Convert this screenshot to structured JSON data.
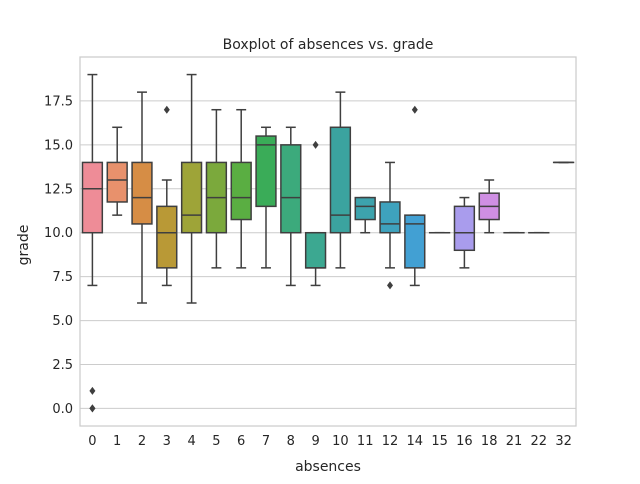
{
  "chart_data": {
    "type": "boxplot",
    "title": "Boxplot of absences vs. grade",
    "xlabel": "absences",
    "ylabel": "grade",
    "ylim": [
      -1,
      20
    ],
    "yticks": [
      0.0,
      2.5,
      5.0,
      7.5,
      10.0,
      12.5,
      15.0,
      17.5
    ],
    "ytick_labels": [
      "0.0",
      "2.5",
      "5.0",
      "7.5",
      "10.0",
      "12.5",
      "15.0",
      "17.5"
    ],
    "grid": "horizontal",
    "categories": [
      "0",
      "1",
      "2",
      "3",
      "4",
      "5",
      "6",
      "7",
      "8",
      "9",
      "10",
      "11",
      "12",
      "14",
      "15",
      "16",
      "18",
      "21",
      "22",
      "32"
    ],
    "boxes": [
      {
        "category": "0",
        "whislo": 7,
        "q1": 10,
        "med": 12.5,
        "q3": 14,
        "whishi": 19,
        "fliers": [
          1,
          0,
          0
        ],
        "color": "#ee8c97"
      },
      {
        "category": "1",
        "whislo": 11,
        "q1": 11.75,
        "med": 13,
        "q3": 14,
        "whishi": 16,
        "fliers": [],
        "color": "#e8916c"
      },
      {
        "category": "2",
        "whislo": 6,
        "q1": 10.5,
        "med": 12,
        "q3": 14,
        "whishi": 18,
        "fliers": [],
        "color": "#d68d45"
      },
      {
        "category": "3",
        "whislo": 7,
        "q1": 8,
        "med": 10,
        "q3": 11.5,
        "whishi": 13,
        "fliers": [
          17
        ],
        "color": "#b99936"
      },
      {
        "category": "4",
        "whislo": 6,
        "q1": 10,
        "med": 11,
        "q3": 14,
        "whishi": 19,
        "fliers": [],
        "color": "#9ea438"
      },
      {
        "category": "5",
        "whislo": 8,
        "q1": 10,
        "med": 12,
        "q3": 14,
        "whishi": 17,
        "fliers": [],
        "color": "#7ba93c"
      },
      {
        "category": "6",
        "whislo": 8,
        "q1": 10.75,
        "med": 12,
        "q3": 14,
        "whishi": 17,
        "fliers": [],
        "color": "#5aae42"
      },
      {
        "category": "7",
        "whislo": 8,
        "q1": 11.5,
        "med": 15,
        "q3": 15.5,
        "whishi": 16,
        "fliers": [],
        "color": "#3aac58"
      },
      {
        "category": "8",
        "whislo": 7,
        "q1": 10,
        "med": 12,
        "q3": 15,
        "whishi": 16,
        "fliers": [],
        "color": "#3caa7c"
      },
      {
        "category": "9",
        "whislo": 7,
        "q1": 8,
        "med": 8,
        "q3": 10,
        "whishi": 10,
        "fliers": [
          15
        ],
        "color": "#3ca891"
      },
      {
        "category": "10",
        "whislo": 8,
        "q1": 10,
        "med": 11,
        "q3": 16,
        "whishi": 18,
        "fliers": [],
        "color": "#3ba39f"
      },
      {
        "category": "11",
        "whislo": 10,
        "q1": 10.75,
        "med": 11.5,
        "q3": 12,
        "whishi": 12,
        "fliers": [],
        "color": "#3da3ad"
      },
      {
        "category": "12",
        "whislo": 8,
        "q1": 10,
        "med": 10.5,
        "q3": 11.75,
        "whishi": 14,
        "fliers": [
          7
        ],
        "color": "#3ea2bd"
      },
      {
        "category": "14",
        "whislo": 7,
        "q1": 8,
        "med": 10.5,
        "q3": 11,
        "whishi": 11,
        "fliers": [
          17
        ],
        "color": "#42a0d3"
      },
      {
        "category": "15",
        "whislo": 10,
        "q1": 10,
        "med": 10,
        "q3": 10,
        "whishi": 10,
        "fliers": [],
        "color": "#6f9de6"
      },
      {
        "category": "16",
        "whislo": 8,
        "q1": 9,
        "med": 10,
        "q3": 11.5,
        "whishi": 12,
        "fliers": [],
        "color": "#a99ced"
      },
      {
        "category": "18",
        "whislo": 10,
        "q1": 10.75,
        "med": 11.5,
        "q3": 12.25,
        "whishi": 13,
        "fliers": [],
        "color": "#cf8fe3"
      },
      {
        "category": "21",
        "whislo": 10,
        "q1": 10,
        "med": 10,
        "q3": 10,
        "whishi": 10,
        "fliers": [],
        "color": "#e486d6"
      },
      {
        "category": "22",
        "whislo": 10,
        "q1": 10,
        "med": 10,
        "q3": 10,
        "whishi": 10,
        "fliers": [],
        "color": "#ec88c0"
      },
      {
        "category": "32",
        "whislo": 14,
        "q1": 14,
        "med": 14,
        "q3": 14,
        "whishi": 14,
        "fliers": [],
        "color": "#ee8aab"
      }
    ]
  }
}
